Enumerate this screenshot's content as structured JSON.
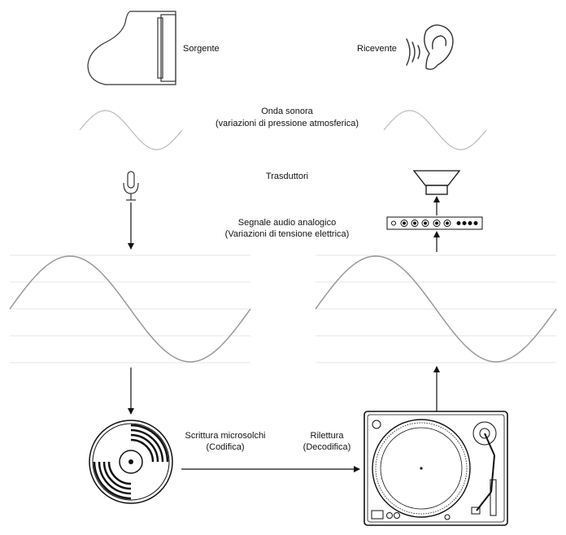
{
  "labels": {
    "source": "Sorgente",
    "receiver": "Ricevente",
    "sound_wave": "Onda sonora",
    "sound_wave_sub": "(variazioni di pressione atmosferica)",
    "transducers": "Trasduttori",
    "analog_signal": "Segnale audio analogico",
    "analog_signal_sub": "(Variazioni di tensione elettrica)",
    "writing": "Scrittura  microsolchi",
    "writing_sub": "(Codifica)",
    "reading": "Rilettura",
    "reading_sub": "(Decodifica)"
  },
  "icons": {
    "source": "grand-piano-icon",
    "receiver": "ear-icon",
    "input_transducer": "microphone-icon",
    "output_transducer": "loudspeaker-icon",
    "amplifier": "amplifier-icon",
    "record": "vinyl-record-icon",
    "player": "turntable-icon"
  },
  "colors": {
    "line": "#111111",
    "wave": "#999999",
    "wave_light": "#bbbbbb",
    "grid": "#e4e4e4"
  }
}
